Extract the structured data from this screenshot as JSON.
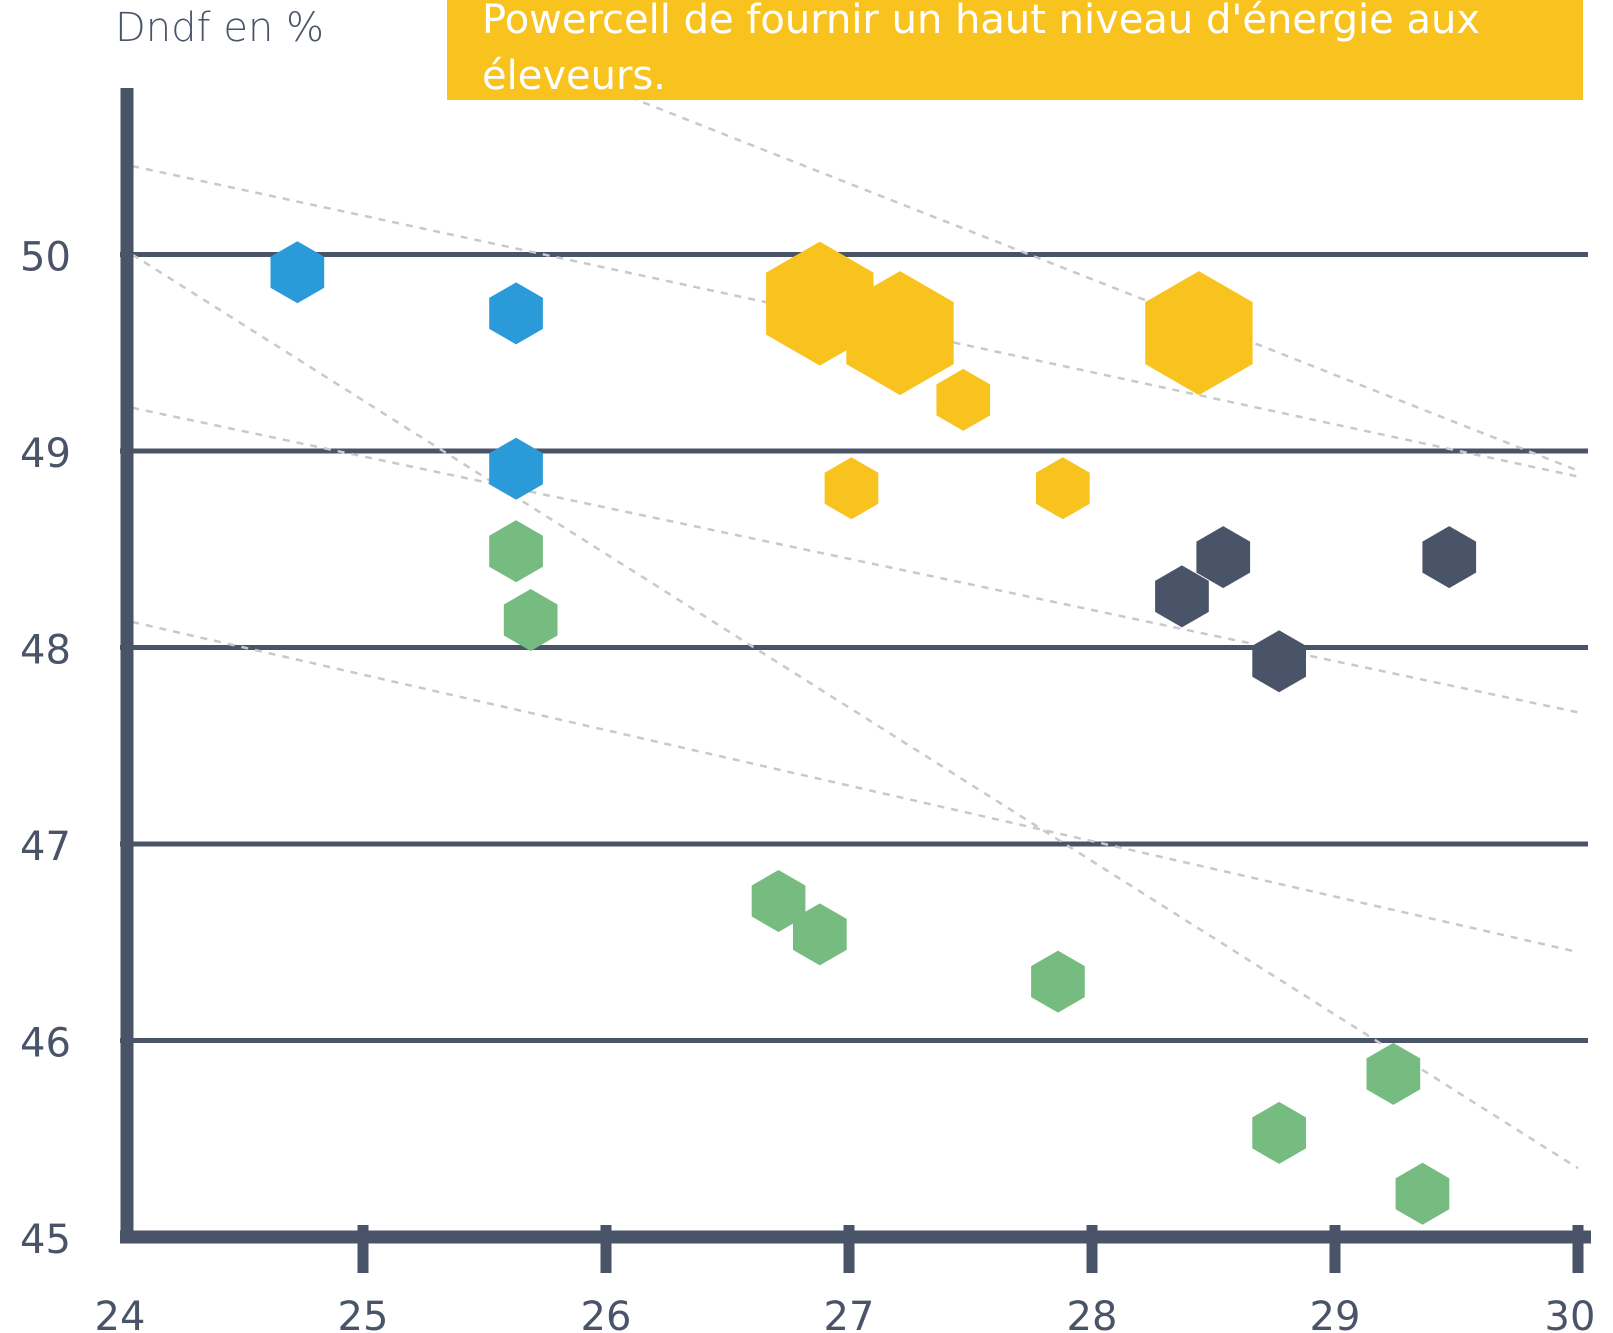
{
  "chart_data": {
    "type": "scatter",
    "title": "",
    "xlabel": "",
    "ylabel": "Dndf en %",
    "annotation": "Powercell de fournir un haut niveau d'énergie aux éleveurs.",
    "xlim": [
      24,
      30
    ],
    "ylim": [
      45,
      50.5
    ],
    "x_ticks": [
      "24",
      "25",
      "26",
      "27",
      "28",
      "29",
      "30"
    ],
    "y_ticks": [
      "45",
      "46",
      "47",
      "48",
      "49",
      "50"
    ],
    "y_tick_values": [
      45,
      46,
      47,
      48,
      49,
      50
    ],
    "x_tick_values": [
      24,
      25,
      26,
      27,
      28,
      29,
      30
    ],
    "grid": "horizontal",
    "trend_lines": [
      {
        "x": [
          24.05,
          30
        ],
        "y": [
          50.45,
          48.87
        ]
      },
      {
        "x": [
          24.05,
          30
        ],
        "y": [
          49.22,
          47.67
        ]
      },
      {
        "x": [
          24.05,
          30
        ],
        "y": [
          48.13,
          46.45
        ]
      },
      {
        "x": [
          26.1,
          30
        ],
        "y": [
          50.8,
          48.9
        ]
      },
      {
        "x": [
          24.05,
          30
        ],
        "y": [
          50.0,
          45.35
        ]
      }
    ],
    "series": [
      {
        "color": "#2b9ad9",
        "points": [
          {
            "x": 24.73,
            "y": 49.91,
            "size": 1
          },
          {
            "x": 25.63,
            "y": 49.7,
            "size": 1
          },
          {
            "x": 25.63,
            "y": 48.91,
            "size": 1
          }
        ]
      },
      {
        "color": "#f9c31f",
        "points": [
          {
            "x": 26.88,
            "y": 49.75,
            "size": 2
          },
          {
            "x": 27.21,
            "y": 49.6,
            "size": 2
          },
          {
            "x": 28.44,
            "y": 49.6,
            "size": 2
          },
          {
            "x": 27.47,
            "y": 49.26,
            "size": 1
          },
          {
            "x": 27.01,
            "y": 48.81,
            "size": 1
          },
          {
            "x": 27.88,
            "y": 48.81,
            "size": 1
          }
        ]
      },
      {
        "color": "#4a5468",
        "points": [
          {
            "x": 28.54,
            "y": 48.46,
            "size": 1
          },
          {
            "x": 28.37,
            "y": 48.26,
            "size": 1
          },
          {
            "x": 29.47,
            "y": 48.46,
            "size": 1
          },
          {
            "x": 28.77,
            "y": 47.93,
            "size": 1
          }
        ]
      },
      {
        "color": "#76bc81",
        "points": [
          {
            "x": 25.63,
            "y": 48.49,
            "size": 1
          },
          {
            "x": 25.69,
            "y": 48.14,
            "size": 1
          },
          {
            "x": 26.71,
            "y": 46.71,
            "size": 1
          },
          {
            "x": 26.88,
            "y": 46.54,
            "size": 1
          },
          {
            "x": 27.86,
            "y": 46.3,
            "size": 1
          },
          {
            "x": 28.77,
            "y": 45.53,
            "size": 1
          },
          {
            "x": 29.24,
            "y": 45.83,
            "size": 1
          },
          {
            "x": 29.36,
            "y": 45.22,
            "size": 1
          }
        ]
      }
    ]
  }
}
